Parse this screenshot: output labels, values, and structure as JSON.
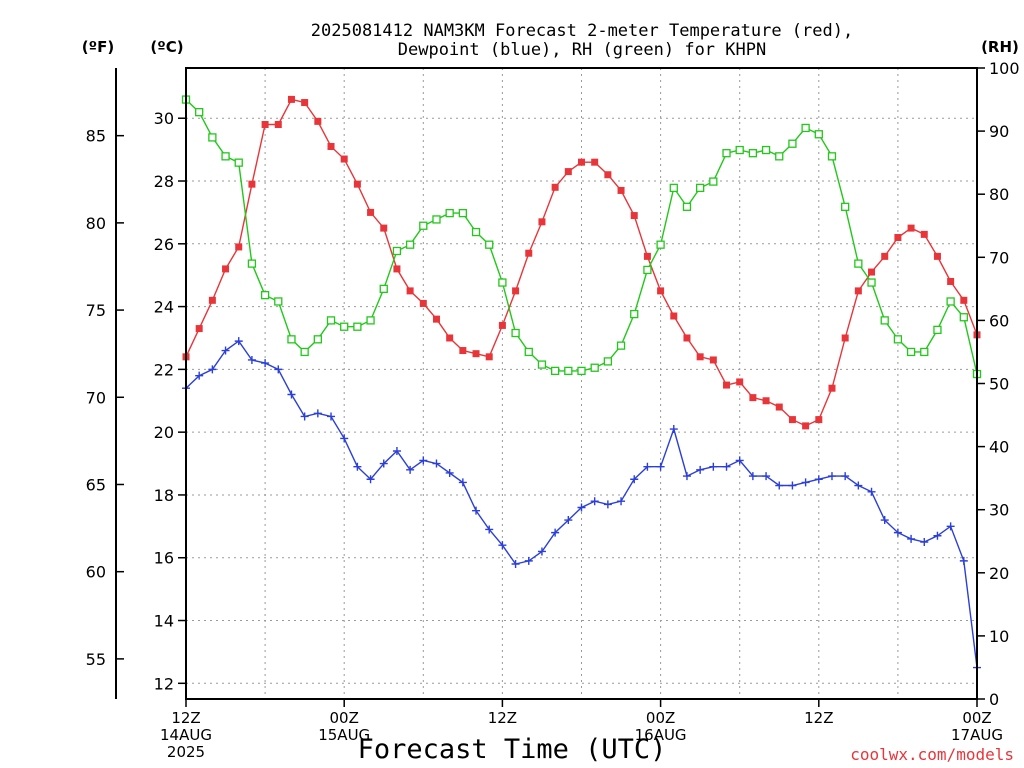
{
  "chart_data": {
    "type": "line",
    "title_line1": "2025081412 NAM3KM Forecast 2-meter Temperature (red),",
    "title_line2": "Dewpoint (blue), RH (green) for KHPN",
    "xlabel": "Forecast Time (UTC)",
    "watermark": "coolwx.com/models",
    "unit_f": "(ºF)",
    "unit_c": "(ºC)",
    "unit_rh": "(RH)",
    "x_range_hours": [
      0,
      60
    ],
    "x_ticks": [
      {
        "h": 0,
        "l1": "12Z",
        "l2": "14AUG",
        "l3": "2025"
      },
      {
        "h": 12,
        "l1": "00Z",
        "l2": "15AUG",
        "l3": ""
      },
      {
        "h": 24,
        "l1": "12Z",
        "l2": "",
        "l3": ""
      },
      {
        "h": 36,
        "l1": "00Z",
        "l2": "16AUG",
        "l3": ""
      },
      {
        "h": 48,
        "l1": "12Z",
        "l2": "",
        "l3": ""
      },
      {
        "h": 60,
        "l1": "00Z",
        "l2": "17AUG",
        "l3": ""
      }
    ],
    "y_c_range": [
      11.5,
      31.6
    ],
    "y_c_ticks": [
      "12",
      "14",
      "16",
      "18",
      "20",
      "22",
      "24",
      "26",
      "28",
      "30"
    ],
    "y_f_ticks": [
      "55",
      "60",
      "65",
      "70",
      "75",
      "80",
      "85"
    ],
    "y_rh_range": [
      0,
      100
    ],
    "y_rh_ticks": [
      "0",
      "10",
      "20",
      "30",
      "40",
      "50",
      "60",
      "70",
      "80",
      "90",
      "100"
    ],
    "grid": true,
    "series": [
      {
        "name": "Temperature",
        "axis": "C",
        "color": "#e8353a",
        "marker": "filled-square",
        "x": [
          0,
          1,
          2,
          3,
          4,
          5,
          6,
          7,
          8,
          9,
          10,
          11,
          12,
          13,
          14,
          15,
          16,
          17,
          18,
          19,
          20,
          21,
          22,
          23,
          24,
          25,
          26,
          27,
          28,
          29,
          30,
          31,
          32,
          33,
          34,
          35,
          36,
          37,
          38,
          39,
          40,
          41,
          42,
          43,
          44,
          45,
          46,
          47,
          48,
          49,
          50,
          51,
          52,
          53,
          54,
          55,
          56,
          57,
          58,
          59,
          60
        ],
        "values": [
          22.4,
          23.3,
          24.2,
          25.2,
          25.9,
          27.9,
          29.8,
          29.8,
          30.6,
          30.5,
          29.9,
          29.1,
          28.7,
          27.9,
          27.0,
          26.5,
          25.2,
          24.5,
          24.1,
          23.6,
          23.0,
          22.6,
          22.5,
          22.4,
          23.4,
          24.5,
          25.7,
          26.7,
          27.8,
          28.3,
          28.6,
          28.6,
          28.2,
          27.7,
          26.9,
          25.6,
          24.5,
          23.7,
          23.0,
          22.4,
          22.3,
          21.5,
          21.6,
          21.1,
          21.0,
          20.8,
          20.4,
          20.2,
          20.4,
          21.4,
          23.0,
          24.5,
          25.1,
          25.6,
          26.2,
          26.5,
          26.3,
          25.6,
          24.8,
          24.2,
          23.1
        ]
      },
      {
        "name": "Dewpoint",
        "axis": "C",
        "color": "#2b3fd9",
        "marker": "plus",
        "x": [
          0,
          1,
          2,
          3,
          4,
          5,
          6,
          7,
          8,
          9,
          10,
          11,
          12,
          13,
          14,
          15,
          16,
          17,
          18,
          19,
          20,
          21,
          22,
          23,
          24,
          25,
          26,
          27,
          28,
          29,
          30,
          31,
          32,
          33,
          34,
          35,
          36,
          37,
          38,
          39,
          40,
          41,
          42,
          43,
          44,
          45,
          46,
          47,
          48,
          49,
          50,
          51,
          52,
          53,
          54,
          55,
          56,
          57,
          58,
          59,
          60
        ],
        "values": [
          21.4,
          21.8,
          22.0,
          22.6,
          22.9,
          22.3,
          22.2,
          22.0,
          21.2,
          20.5,
          20.6,
          20.5,
          19.8,
          18.9,
          18.5,
          19.0,
          19.4,
          18.8,
          19.1,
          19.0,
          18.7,
          18.4,
          17.5,
          16.9,
          16.4,
          15.8,
          15.9,
          16.2,
          16.8,
          17.2,
          17.6,
          17.8,
          17.7,
          17.8,
          18.5,
          18.9,
          18.9,
          20.1,
          18.6,
          18.8,
          18.9,
          18.9,
          19.1,
          18.6,
          18.6,
          18.3,
          18.3,
          18.4,
          18.5,
          18.6,
          18.6,
          18.3,
          18.1,
          17.2,
          16.8,
          16.6,
          16.5,
          16.7,
          17.0,
          15.9,
          12.5
        ]
      },
      {
        "name": "RH",
        "axis": "RH",
        "color": "#22c81a",
        "marker": "open-square",
        "x": [
          0,
          1,
          2,
          3,
          4,
          5,
          6,
          7,
          8,
          9,
          10,
          11,
          12,
          13,
          14,
          15,
          16,
          17,
          18,
          19,
          20,
          21,
          22,
          23,
          24,
          25,
          26,
          27,
          28,
          29,
          30,
          31,
          32,
          33,
          34,
          35,
          36,
          37,
          38,
          39,
          40,
          41,
          42,
          43,
          44,
          45,
          46,
          47,
          48,
          49,
          50,
          51,
          52,
          53,
          54,
          55,
          56,
          57,
          58,
          59,
          60
        ],
        "values": [
          95,
          93,
          89,
          86,
          85,
          69,
          64,
          63,
          57,
          55,
          57,
          60,
          59,
          59,
          60,
          65,
          71,
          72,
          75,
          76,
          77,
          77,
          74,
          72,
          66,
          58,
          55,
          53,
          52,
          52,
          52,
          52.5,
          53.5,
          56,
          61,
          68,
          72,
          81,
          78,
          81,
          82,
          86.5,
          87,
          86.5,
          87,
          86,
          88,
          90.5,
          89.5,
          86,
          78,
          69,
          66,
          60,
          57,
          55,
          55,
          58.5,
          63,
          60.5,
          51.5
        ]
      }
    ]
  }
}
